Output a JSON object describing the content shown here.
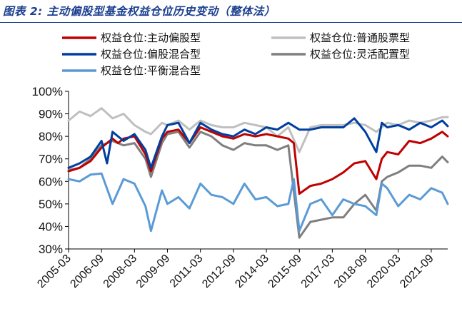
{
  "header": {
    "title": "图表 2:  主动偏股型基金权益仓位历史变动（整体法）"
  },
  "chart_data": {
    "type": "line",
    "title": "图表 2:  主动偏股型基金权益仓位历史变动（整体法）",
    "xlabel": "",
    "ylabel": "",
    "ylim": [
      30,
      100
    ],
    "yticks": [
      "30%",
      "40%",
      "50%",
      "60%",
      "70%",
      "80%",
      "90%",
      "100%"
    ],
    "xticks": [
      "2005-03",
      "2006-09",
      "2008-03",
      "2009-09",
      "2011-03",
      "2012-09",
      "2014-03",
      "2015-09",
      "2017-03",
      "2018-09",
      "2020-03",
      "2021-09"
    ],
    "x_range": [
      "2005-03",
      "2022-06"
    ],
    "grid": false,
    "legend_position": "top",
    "series": [
      {
        "name": "权益仓位:主动偏股型",
        "color": "#c00000",
        "points": [
          [
            "2005-03",
            64.5
          ],
          [
            "2005-09",
            66
          ],
          [
            "2006-03",
            69
          ],
          [
            "2006-09",
            75
          ],
          [
            "2007-03",
            79
          ],
          [
            "2007-06",
            77
          ],
          [
            "2007-09",
            79
          ],
          [
            "2008-03",
            80
          ],
          [
            "2008-09",
            72
          ],
          [
            "2008-12",
            64.5
          ],
          [
            "2009-06",
            79
          ],
          [
            "2009-09",
            82
          ],
          [
            "2010-03",
            83
          ],
          [
            "2010-09",
            77
          ],
          [
            "2011-03",
            84
          ],
          [
            "2011-09",
            82
          ],
          [
            "2012-03",
            80
          ],
          [
            "2012-09",
            79
          ],
          [
            "2013-03",
            81
          ],
          [
            "2013-09",
            80
          ],
          [
            "2014-03",
            81
          ],
          [
            "2014-09",
            80
          ],
          [
            "2015-03",
            79
          ],
          [
            "2015-06",
            77
          ],
          [
            "2015-09",
            54.5
          ],
          [
            "2016-03",
            58
          ],
          [
            "2016-09",
            59
          ],
          [
            "2017-03",
            61
          ],
          [
            "2017-09",
            64
          ],
          [
            "2018-03",
            68
          ],
          [
            "2018-09",
            69
          ],
          [
            "2019-03",
            61
          ],
          [
            "2019-06",
            70
          ],
          [
            "2019-09",
            73
          ],
          [
            "2020-03",
            72
          ],
          [
            "2020-09",
            78
          ],
          [
            "2021-03",
            77
          ],
          [
            "2021-09",
            79
          ],
          [
            "2022-03",
            82
          ],
          [
            "2022-06",
            80
          ]
        ]
      },
      {
        "name": "权益仓位:普通股票型",
        "color": "#bfbfbf",
        "points": [
          [
            "2005-03",
            87
          ],
          [
            "2005-09",
            91
          ],
          [
            "2006-03",
            89
          ],
          [
            "2006-09",
            92.5
          ],
          [
            "2007-03",
            88
          ],
          [
            "2007-09",
            90
          ],
          [
            "2008-03",
            85
          ],
          [
            "2008-09",
            82
          ],
          [
            "2008-12",
            81
          ],
          [
            "2009-06",
            86
          ],
          [
            "2009-09",
            85
          ],
          [
            "2010-03",
            87
          ],
          [
            "2010-09",
            83
          ],
          [
            "2011-03",
            87
          ],
          [
            "2011-09",
            85
          ],
          [
            "2012-03",
            84
          ],
          [
            "2012-09",
            84
          ],
          [
            "2013-03",
            86
          ],
          [
            "2013-09",
            85
          ],
          [
            "2014-03",
            84
          ],
          [
            "2014-09",
            80
          ],
          [
            "2015-03",
            84
          ],
          [
            "2015-09",
            73
          ],
          [
            "2016-03",
            84
          ],
          [
            "2016-09",
            85
          ],
          [
            "2017-03",
            85
          ],
          [
            "2017-09",
            85
          ],
          [
            "2018-03",
            86
          ],
          [
            "2018-09",
            85
          ],
          [
            "2019-03",
            82
          ],
          [
            "2019-09",
            86
          ],
          [
            "2020-03",
            85
          ],
          [
            "2020-09",
            87
          ],
          [
            "2021-03",
            86
          ],
          [
            "2021-09",
            87
          ],
          [
            "2022-03",
            88.5
          ],
          [
            "2022-06",
            88.5
          ]
        ]
      },
      {
        "name": "权益仓位:偏股混合型",
        "color": "#003f9f",
        "points": [
          [
            "2005-03",
            66
          ],
          [
            "2005-09",
            68
          ],
          [
            "2006-03",
            71
          ],
          [
            "2006-09",
            78
          ],
          [
            "2006-12",
            68
          ],
          [
            "2007-03",
            82
          ],
          [
            "2007-09",
            78
          ],
          [
            "2008-03",
            81
          ],
          [
            "2008-09",
            74
          ],
          [
            "2008-12",
            66
          ],
          [
            "2009-06",
            80
          ],
          [
            "2009-09",
            85
          ],
          [
            "2010-03",
            86
          ],
          [
            "2010-09",
            77
          ],
          [
            "2011-03",
            86
          ],
          [
            "2011-09",
            83
          ],
          [
            "2012-03",
            81
          ],
          [
            "2012-09",
            80
          ],
          [
            "2013-03",
            83
          ],
          [
            "2013-09",
            81
          ],
          [
            "2014-03",
            84
          ],
          [
            "2014-09",
            83
          ],
          [
            "2015-03",
            86
          ],
          [
            "2015-09",
            83
          ],
          [
            "2016-03",
            83
          ],
          [
            "2016-09",
            84
          ],
          [
            "2017-03",
            84
          ],
          [
            "2017-09",
            84
          ],
          [
            "2018-03",
            88
          ],
          [
            "2018-09",
            82
          ],
          [
            "2019-03",
            73
          ],
          [
            "2019-06",
            86
          ],
          [
            "2019-09",
            84
          ],
          [
            "2020-03",
            85
          ],
          [
            "2020-09",
            83
          ],
          [
            "2021-03",
            86
          ],
          [
            "2021-09",
            84
          ],
          [
            "2022-03",
            87
          ],
          [
            "2022-06",
            84.5
          ]
        ]
      },
      {
        "name": "权益仓位:灵活配置型",
        "color": "#7f7f7f",
        "points": [
          [
            "2005-03",
            65
          ],
          [
            "2005-09",
            66
          ],
          [
            "2006-03",
            70
          ],
          [
            "2006-09",
            76
          ],
          [
            "2007-03",
            78
          ],
          [
            "2007-09",
            76
          ],
          [
            "2008-03",
            77
          ],
          [
            "2008-09",
            70
          ],
          [
            "2008-12",
            62
          ],
          [
            "2009-06",
            77
          ],
          [
            "2009-09",
            81
          ],
          [
            "2010-03",
            82
          ],
          [
            "2010-09",
            75
          ],
          [
            "2011-03",
            82
          ],
          [
            "2011-09",
            80
          ],
          [
            "2012-03",
            76
          ],
          [
            "2012-09",
            74
          ],
          [
            "2013-03",
            77
          ],
          [
            "2013-09",
            76
          ],
          [
            "2014-03",
            76
          ],
          [
            "2014-09",
            74
          ],
          [
            "2015-03",
            76
          ],
          [
            "2015-09",
            35
          ],
          [
            "2016-03",
            42
          ],
          [
            "2016-09",
            43
          ],
          [
            "2017-03",
            44
          ],
          [
            "2017-09",
            44
          ],
          [
            "2018-03",
            50
          ],
          [
            "2018-09",
            54
          ],
          [
            "2019-03",
            47
          ],
          [
            "2019-06",
            60
          ],
          [
            "2019-09",
            62
          ],
          [
            "2020-03",
            64
          ],
          [
            "2020-09",
            67
          ],
          [
            "2021-03",
            67
          ],
          [
            "2021-09",
            66
          ],
          [
            "2022-03",
            71
          ],
          [
            "2022-06",
            68.5
          ]
        ]
      },
      {
        "name": "权益仓位:平衡混合型",
        "color": "#5b9bd5",
        "points": [
          [
            "2005-03",
            61
          ],
          [
            "2005-09",
            60
          ],
          [
            "2006-03",
            63
          ],
          [
            "2006-09",
            63.5
          ],
          [
            "2007-03",
            50
          ],
          [
            "2007-09",
            61
          ],
          [
            "2008-03",
            59
          ],
          [
            "2008-09",
            49
          ],
          [
            "2008-12",
            38
          ],
          [
            "2009-06",
            56
          ],
          [
            "2009-09",
            50
          ],
          [
            "2010-03",
            53
          ],
          [
            "2010-09",
            48
          ],
          [
            "2011-03",
            59
          ],
          [
            "2011-09",
            54
          ],
          [
            "2012-03",
            53
          ],
          [
            "2012-09",
            50
          ],
          [
            "2013-03",
            59
          ],
          [
            "2013-09",
            52
          ],
          [
            "2014-03",
            53
          ],
          [
            "2014-09",
            49
          ],
          [
            "2015-03",
            50
          ],
          [
            "2015-06",
            61
          ],
          [
            "2015-09",
            38
          ],
          [
            "2016-03",
            50
          ],
          [
            "2016-09",
            52
          ],
          [
            "2017-03",
            45
          ],
          [
            "2017-09",
            52
          ],
          [
            "2018-03",
            50
          ],
          [
            "2018-09",
            49
          ],
          [
            "2019-03",
            45
          ],
          [
            "2019-06",
            59
          ],
          [
            "2019-09",
            57
          ],
          [
            "2020-03",
            49
          ],
          [
            "2020-09",
            54
          ],
          [
            "2021-03",
            52
          ],
          [
            "2021-09",
            57
          ],
          [
            "2022-03",
            55
          ],
          [
            "2022-06",
            50
          ]
        ]
      }
    ]
  }
}
